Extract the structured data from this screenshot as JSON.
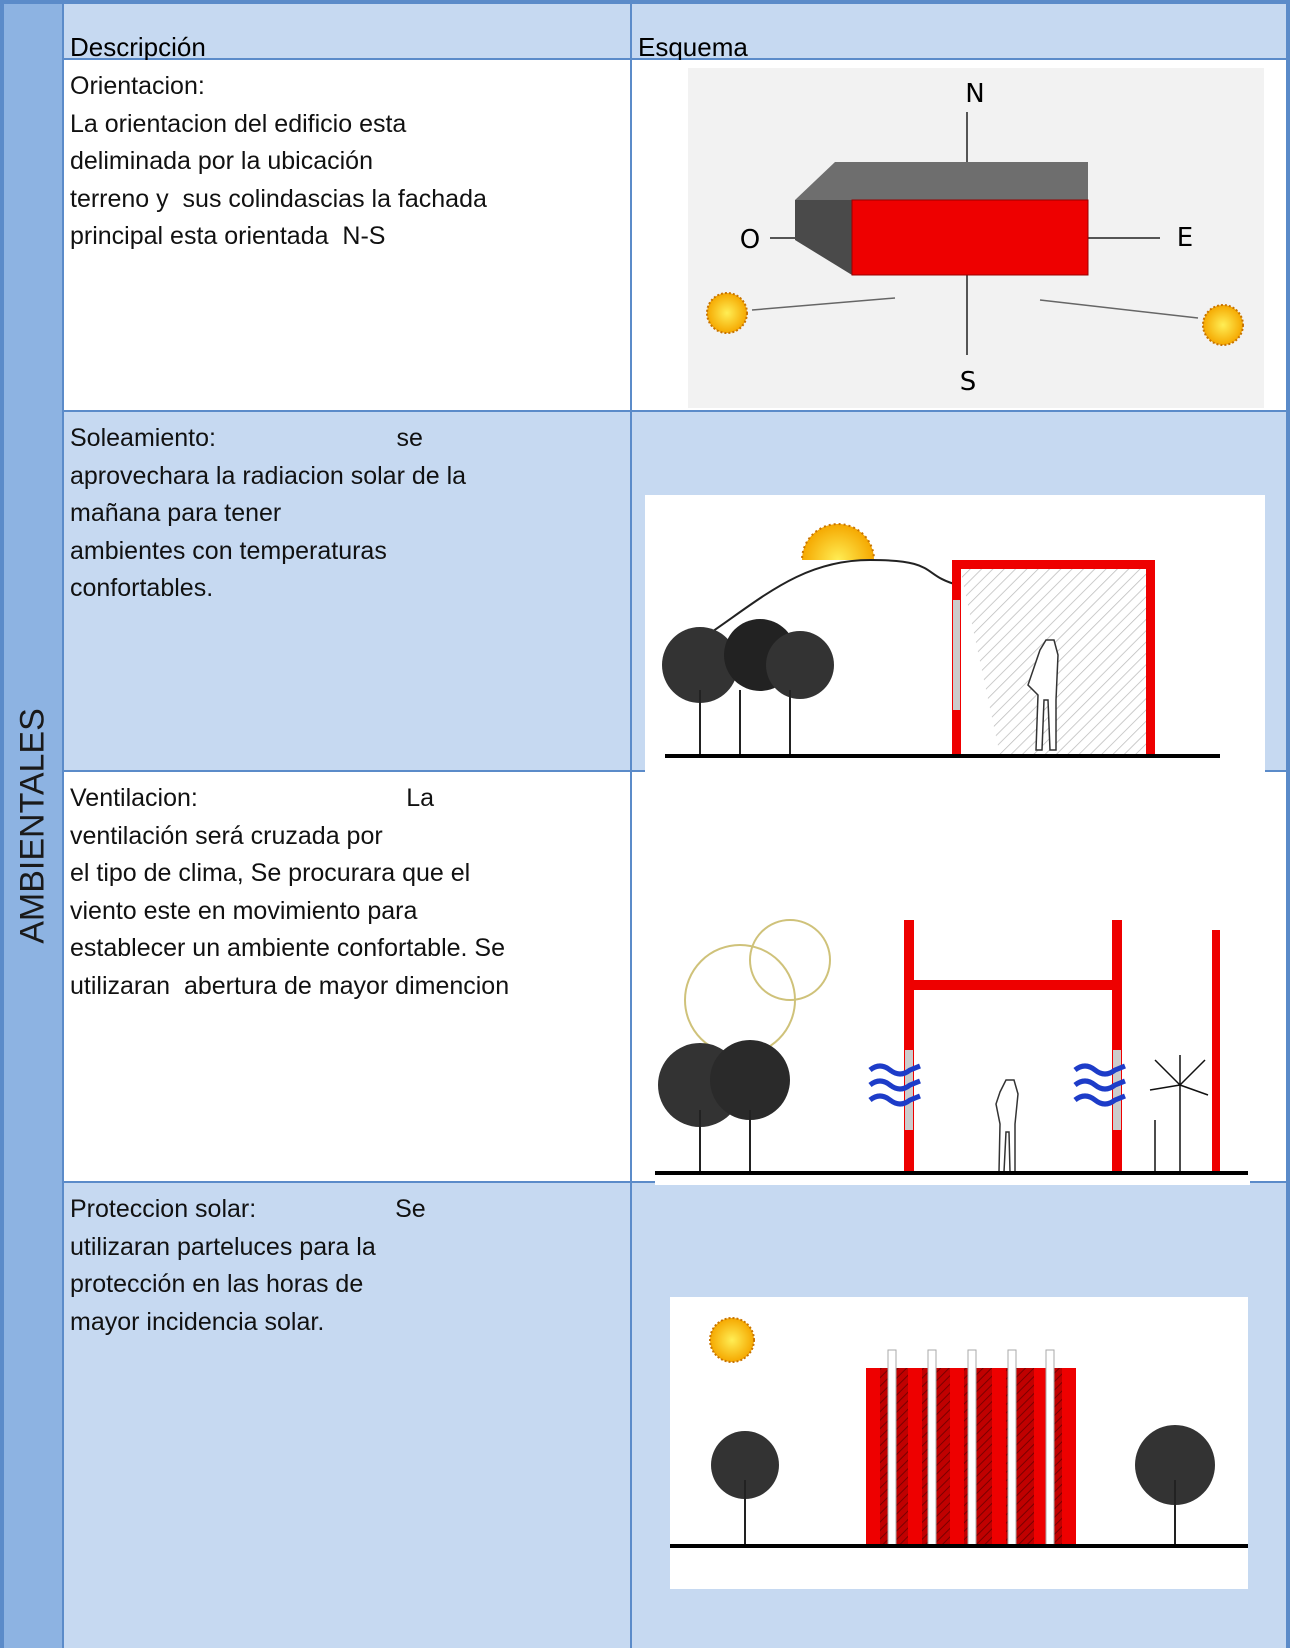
{
  "side_label": "AMBIENTALES",
  "header": {
    "description": "Descripción",
    "scheme": "Esquema"
  },
  "rows": [
    {
      "lines": [
        "Orientacion:",
        "La orientacion del edificio esta",
        "deliminada por la ubicación",
        "terreno y  sus colindascias la fachada",
        "principal esta orientada  N-S"
      ],
      "diagram_labels": [
        "N",
        "O",
        "E",
        "S"
      ]
    },
    {
      "lines": [
        "Soleamiento:                          se",
        "aprovechara la radiacion solar de la",
        "mañana para tener",
        "ambientes con temperaturas",
        "confortables."
      ]
    },
    {
      "lines": [
        "Ventilacion:                              La",
        "ventilación será cruzada por",
        "el tipo de clima, Se procurara que el",
        "viento este en movimiento para",
        "establecer un ambiente confortable. Se",
        "utilizaran  abertura de mayor dimencion"
      ]
    },
    {
      "lines": [
        "Proteccion solar:                    Se",
        "utilizaran parteluces para la",
        "protección en las horas de",
        "mayor incidencia solar."
      ]
    }
  ]
}
